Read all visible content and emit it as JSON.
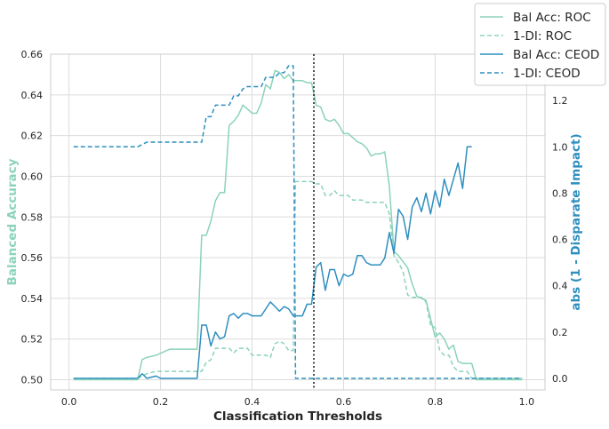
{
  "chart_data": {
    "type": "line",
    "xlabel": "Classification Thresholds",
    "ylabel_left": "Balanced Accuracy",
    "ylabel_right": "abs (1 - Disparate Impact)",
    "xlim": [
      -0.04,
      1.04
    ],
    "ylim_left": [
      0.495,
      0.66
    ],
    "ylim_right": [
      -0.05,
      1.4
    ],
    "xticks": [
      "0.0",
      "0.2",
      "0.4",
      "0.6",
      "0.8",
      "1.0"
    ],
    "yticks_left": [
      "0.50",
      "0.52",
      "0.54",
      "0.56",
      "0.58",
      "0.60",
      "0.62",
      "0.64",
      "0.66"
    ],
    "yticks_right": [
      "0.0",
      "0.2",
      "0.4",
      "0.6",
      "0.8",
      "1.0",
      "1.2"
    ],
    "grid": true,
    "legend_position": "top-right",
    "best_threshold": 0.535,
    "colors": {
      "roc": "#8bd3b8",
      "ceod": "#2e8fbf",
      "axis_left": "#8bd3b8",
      "axis_right": "#2e8fbf",
      "vline": "#000000"
    },
    "series": [
      {
        "name": "Bal Acc: ROC",
        "axis": "left",
        "style": "solid",
        "color": "#8bd3b8",
        "x": [
          0.01,
          0.15,
          0.16,
          0.17,
          0.19,
          0.2,
          0.22,
          0.27,
          0.28,
          0.29,
          0.3,
          0.31,
          0.32,
          0.33,
          0.34,
          0.35,
          0.36,
          0.37,
          0.38,
          0.39,
          0.4,
          0.41,
          0.42,
          0.43,
          0.44,
          0.45,
          0.46,
          0.47,
          0.48,
          0.49,
          0.5,
          0.51,
          0.52,
          0.53,
          0.54,
          0.55,
          0.56,
          0.57,
          0.58,
          0.59,
          0.6,
          0.61,
          0.62,
          0.63,
          0.64,
          0.65,
          0.66,
          0.67,
          0.68,
          0.69,
          0.7,
          0.71,
          0.72,
          0.73,
          0.74,
          0.75,
          0.76,
          0.77,
          0.78,
          0.79,
          0.8,
          0.81,
          0.82,
          0.83,
          0.84,
          0.85,
          0.86,
          0.87,
          0.88,
          0.89,
          0.9,
          0.95,
          0.99
        ],
        "y": [
          0.5,
          0.5,
          0.51,
          0.511,
          0.512,
          0.513,
          0.515,
          0.515,
          0.515,
          0.571,
          0.571,
          0.578,
          0.588,
          0.592,
          0.592,
          0.625,
          0.627,
          0.63,
          0.635,
          0.633,
          0.631,
          0.631,
          0.636,
          0.645,
          0.643,
          0.652,
          0.651,
          0.648,
          0.65,
          0.647,
          0.647,
          0.647,
          0.646,
          0.646,
          0.635,
          0.634,
          0.628,
          0.627,
          0.628,
          0.625,
          0.621,
          0.621,
          0.619,
          0.617,
          0.616,
          0.614,
          0.61,
          0.611,
          0.611,
          0.612,
          0.595,
          0.563,
          0.561,
          0.558,
          0.555,
          0.547,
          0.541,
          0.54,
          0.539,
          0.53,
          0.521,
          0.523,
          0.52,
          0.515,
          0.517,
          0.509,
          0.508,
          0.508,
          0.508,
          0.5,
          0.5,
          0.5,
          0.5
        ]
      },
      {
        "name": "1-DI: ROC",
        "axis": "right",
        "style": "dashed",
        "color": "#8bd3b8",
        "x": [
          0.01,
          0.15,
          0.16,
          0.17,
          0.19,
          0.2,
          0.22,
          0.27,
          0.28,
          0.29,
          0.3,
          0.31,
          0.32,
          0.33,
          0.34,
          0.35,
          0.36,
          0.37,
          0.38,
          0.39,
          0.4,
          0.41,
          0.42,
          0.43,
          0.44,
          0.45,
          0.46,
          0.47,
          0.48,
          0.49,
          0.495,
          0.5,
          0.51,
          0.52,
          0.53,
          0.54,
          0.55,
          0.56,
          0.57,
          0.58,
          0.59,
          0.6,
          0.61,
          0.62,
          0.63,
          0.64,
          0.65,
          0.66,
          0.67,
          0.68,
          0.69,
          0.7,
          0.71,
          0.72,
          0.73,
          0.74,
          0.75,
          0.76,
          0.77,
          0.78,
          0.79,
          0.8,
          0.81,
          0.82,
          0.83,
          0.84,
          0.85,
          0.86,
          0.87,
          0.88,
          0.89,
          0.95,
          0.99
        ],
        "y": [
          0.0,
          0.0,
          0.01,
          0.02,
          0.03,
          0.03,
          0.03,
          0.03,
          0.03,
          0.03,
          0.07,
          0.08,
          0.13,
          0.13,
          0.13,
          0.13,
          0.11,
          0.13,
          0.13,
          0.13,
          0.1,
          0.1,
          0.1,
          0.1,
          0.09,
          0.15,
          0.16,
          0.15,
          0.12,
          0.12,
          0.85,
          0.85,
          0.85,
          0.85,
          0.85,
          0.84,
          0.84,
          0.79,
          0.79,
          0.81,
          0.79,
          0.79,
          0.79,
          0.77,
          0.77,
          0.77,
          0.76,
          0.76,
          0.76,
          0.76,
          0.76,
          0.71,
          0.53,
          0.5,
          0.46,
          0.36,
          0.35,
          0.35,
          0.35,
          0.33,
          0.23,
          0.22,
          0.12,
          0.1,
          0.1,
          0.05,
          0.03,
          0.03,
          0.03,
          0.0,
          0.0,
          0.0,
          0.0
        ]
      },
      {
        "name": "Bal Acc: CEOD",
        "axis": "right",
        "style": "solid",
        "color": "#2e8fbf",
        "x": [
          0.01,
          0.15,
          0.16,
          0.17,
          0.19,
          0.2,
          0.22,
          0.27,
          0.28,
          0.29,
          0.3,
          0.31,
          0.32,
          0.33,
          0.34,
          0.35,
          0.36,
          0.37,
          0.38,
          0.39,
          0.4,
          0.41,
          0.42,
          0.43,
          0.44,
          0.45,
          0.46,
          0.47,
          0.48,
          0.49,
          0.5,
          0.51,
          0.52,
          0.53,
          0.54,
          0.55,
          0.56,
          0.57,
          0.58,
          0.59,
          0.6,
          0.61,
          0.62,
          0.63,
          0.64,
          0.65,
          0.66,
          0.67,
          0.68,
          0.69,
          0.7,
          0.71,
          0.72,
          0.73,
          0.74,
          0.75,
          0.76,
          0.77,
          0.78,
          0.79,
          0.8,
          0.81,
          0.82,
          0.83,
          0.84,
          0.85,
          0.86,
          0.87,
          0.88
        ],
        "y": [
          0.0,
          0.0,
          0.02,
          0.0,
          0.01,
          0.0,
          0.0,
          0.0,
          0.0,
          0.23,
          0.23,
          0.14,
          0.2,
          0.17,
          0.18,
          0.27,
          0.28,
          0.26,
          0.28,
          0.28,
          0.27,
          0.27,
          0.27,
          0.3,
          0.33,
          0.31,
          0.29,
          0.31,
          0.3,
          0.27,
          0.27,
          0.27,
          0.32,
          0.32,
          0.48,
          0.5,
          0.38,
          0.47,
          0.47,
          0.4,
          0.45,
          0.44,
          0.45,
          0.53,
          0.53,
          0.5,
          0.49,
          0.49,
          0.49,
          0.52,
          0.63,
          0.54,
          0.73,
          0.7,
          0.6,
          0.74,
          0.78,
          0.72,
          0.8,
          0.71,
          0.81,
          0.74,
          0.86,
          0.79,
          0.86,
          0.93,
          0.82,
          1.0,
          1.0
        ]
      },
      {
        "name": "1-DI: CEOD",
        "axis": "right",
        "style": "dashed",
        "color": "#2e8fbf",
        "x": [
          0.01,
          0.15,
          0.16,
          0.17,
          0.19,
          0.2,
          0.22,
          0.27,
          0.28,
          0.29,
          0.3,
          0.31,
          0.32,
          0.33,
          0.34,
          0.35,
          0.36,
          0.37,
          0.38,
          0.39,
          0.4,
          0.41,
          0.42,
          0.43,
          0.44,
          0.45,
          0.46,
          0.47,
          0.48,
          0.49,
          0.495,
          0.5,
          0.55,
          0.6,
          0.7,
          0.8,
          0.9,
          0.99
        ],
        "y": [
          1.0,
          1.0,
          1.01,
          1.02,
          1.02,
          1.02,
          1.02,
          1.02,
          1.02,
          1.02,
          1.13,
          1.13,
          1.18,
          1.18,
          1.18,
          1.18,
          1.22,
          1.22,
          1.25,
          1.26,
          1.26,
          1.26,
          1.26,
          1.3,
          1.3,
          1.3,
          1.32,
          1.32,
          1.35,
          1.35,
          0.0,
          0.0,
          0.0,
          0.0,
          0.0,
          0.0,
          0.0,
          0.0
        ]
      }
    ]
  }
}
